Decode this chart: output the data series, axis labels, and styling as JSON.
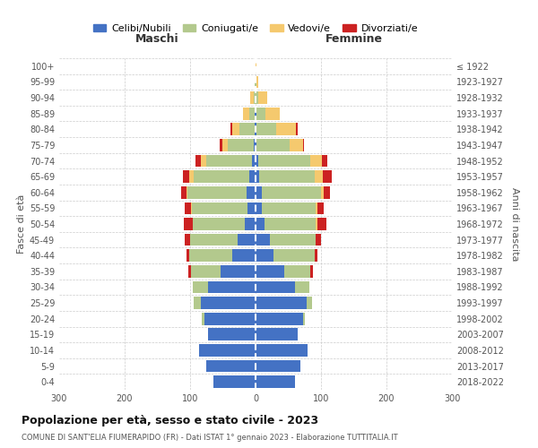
{
  "age_groups": [
    "0-4",
    "5-9",
    "10-14",
    "15-19",
    "20-24",
    "25-29",
    "30-34",
    "35-39",
    "40-44",
    "45-49",
    "50-54",
    "55-59",
    "60-64",
    "65-69",
    "70-74",
    "75-79",
    "80-84",
    "85-89",
    "90-94",
    "95-99",
    "100+"
  ],
  "birth_years": [
    "2018-2022",
    "2013-2017",
    "2008-2012",
    "2003-2007",
    "1998-2002",
    "1993-1997",
    "1988-1992",
    "1983-1987",
    "1978-1982",
    "1973-1977",
    "1968-1972",
    "1963-1967",
    "1958-1962",
    "1953-1957",
    "1948-1952",
    "1943-1947",
    "1938-1942",
    "1933-1937",
    "1928-1932",
    "1923-1927",
    "≤ 1922"
  ],
  "colors": {
    "celibe": "#4472c4",
    "coniugato": "#b3c98d",
    "vedovo": "#f5c96e",
    "divorziato": "#cc2222"
  },
  "males": {
    "celibe": [
      65,
      75,
      86,
      72,
      78,
      84,
      72,
      53,
      36,
      28,
      16,
      12,
      14,
      10,
      6,
      3,
      2,
      1,
      0,
      0,
      0
    ],
    "coniugato": [
      0,
      0,
      0,
      1,
      4,
      10,
      24,
      46,
      66,
      72,
      80,
      85,
      90,
      85,
      70,
      40,
      22,
      8,
      3,
      1,
      0
    ],
    "vedovo": [
      0,
      0,
      0,
      0,
      0,
      0,
      0,
      0,
      0,
      0,
      0,
      1,
      2,
      6,
      8,
      8,
      12,
      10,
      5,
      1,
      0
    ],
    "divorziato": [
      0,
      0,
      0,
      0,
      0,
      0,
      0,
      4,
      4,
      8,
      14,
      10,
      8,
      10,
      8,
      4,
      2,
      0,
      0,
      0,
      0
    ]
  },
  "females": {
    "nubile": [
      60,
      68,
      80,
      64,
      72,
      78,
      60,
      44,
      28,
      22,
      14,
      10,
      10,
      6,
      4,
      2,
      2,
      1,
      0,
      0,
      0
    ],
    "coniugata": [
      0,
      0,
      0,
      1,
      4,
      8,
      22,
      40,
      62,
      70,
      78,
      82,
      90,
      85,
      80,
      50,
      30,
      14,
      4,
      1,
      0
    ],
    "vedova": [
      0,
      0,
      0,
      0,
      0,
      0,
      0,
      0,
      0,
      0,
      2,
      2,
      4,
      12,
      18,
      20,
      30,
      22,
      14,
      3,
      1
    ],
    "divorziata": [
      0,
      0,
      0,
      0,
      0,
      0,
      0,
      4,
      4,
      8,
      14,
      10,
      10,
      14,
      8,
      2,
      2,
      0,
      0,
      0,
      0
    ]
  },
  "title": "Popolazione per età, sesso e stato civile - 2023",
  "subtitle": "COMUNE DI SANT'ELIA FIUMERAPIDO (FR) - Dati ISTAT 1° gennaio 2023 - Elaborazione TUTTITALIA.IT",
  "xlabel_left": "Maschi",
  "xlabel_right": "Femmine",
  "ylabel_left": "Fasce di età",
  "ylabel_right": "Anni di nascita",
  "xlim": 300,
  "legend_labels": [
    "Celibi/Nubili",
    "Coniugati/e",
    "Vedovi/e",
    "Divorziati/e"
  ],
  "bg_color": "#ffffff",
  "grid_color": "#cccccc"
}
